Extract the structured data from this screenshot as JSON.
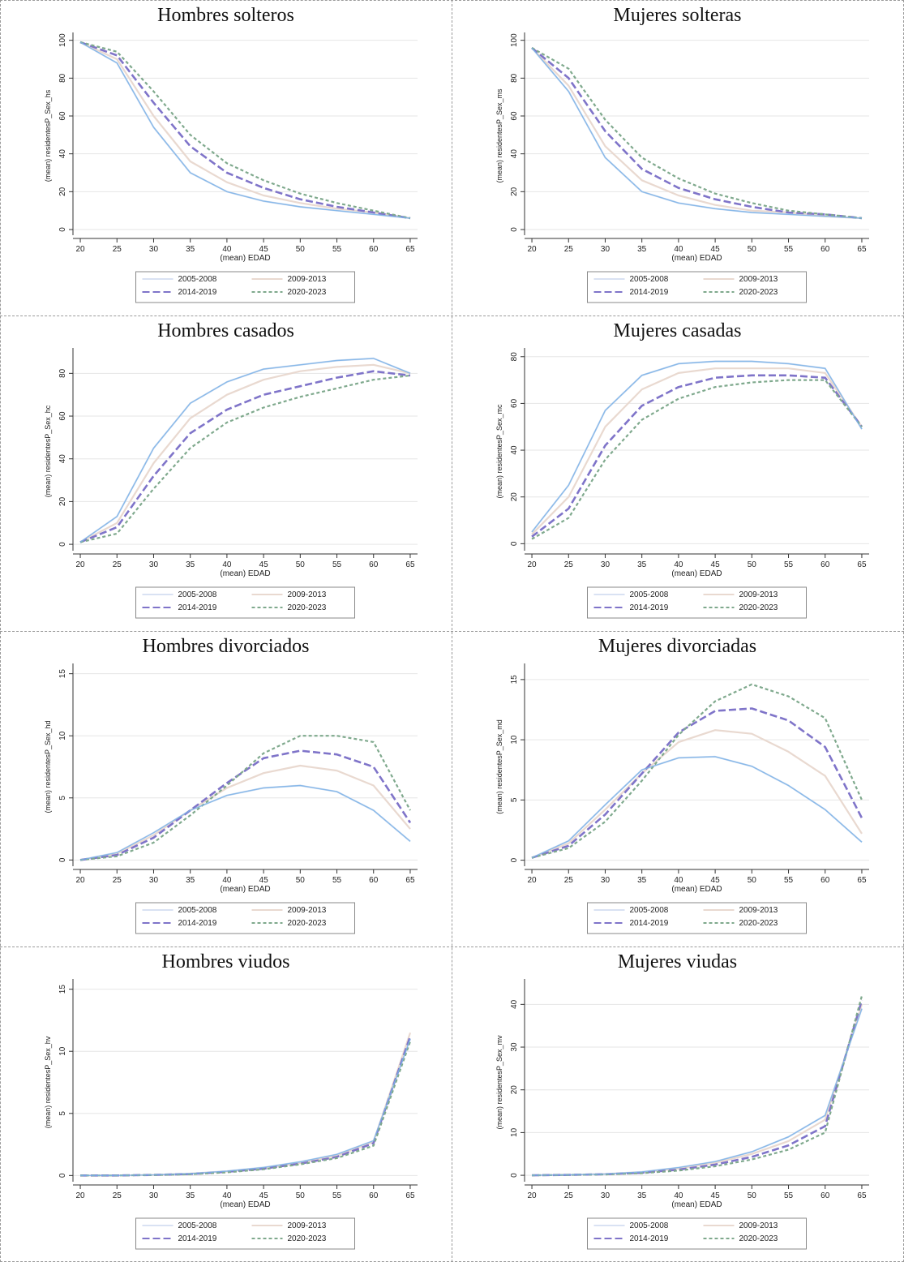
{
  "legend_labels": [
    "2005-2008",
    "2009-2013",
    "2014-2019",
    "2020-2023"
  ],
  "colors": {
    "p1": "#d9e2f3",
    "p2": "#e9d9d0",
    "p3": "#7f74c9",
    "p4": "#7fa98d",
    "light_blue": "#79b2e6",
    "grid": "#e6e6e6"
  },
  "chart_data": [
    {
      "type": "line",
      "title": "Hombres solteros",
      "xlabel": "(mean) EDAD",
      "ylabel": "(mean) residentesP_Sex_hs",
      "x": [
        20,
        25,
        30,
        35,
        40,
        45,
        50,
        55,
        60,
        65
      ],
      "xticks": [
        20,
        25,
        30,
        35,
        40,
        45,
        50,
        55,
        60,
        65
      ],
      "ylim": [
        -3,
        102
      ],
      "yticks": [
        0,
        20,
        40,
        60,
        80,
        100
      ],
      "legend": "bottom",
      "series": [
        {
          "values": [
            99,
            88,
            54,
            30,
            20,
            15,
            12,
            10,
            8,
            6
          ]
        },
        {
          "values": [
            99,
            90,
            60,
            36,
            25,
            18,
            14,
            11,
            9,
            6
          ]
        },
        {
          "values": [
            99,
            92,
            67,
            44,
            30,
            22,
            16,
            12,
            9,
            6
          ]
        },
        {
          "values": [
            99,
            94,
            73,
            50,
            35,
            26,
            19,
            14,
            10,
            6
          ]
        }
      ]
    },
    {
      "type": "line",
      "title": "Mujeres solteras",
      "xlabel": "(mean) EDAD",
      "ylabel": "(mean) residentesP_Sex_ms",
      "x": [
        20,
        25,
        30,
        35,
        40,
        45,
        50,
        55,
        60,
        65
      ],
      "xticks": [
        20,
        25,
        30,
        35,
        40,
        45,
        50,
        55,
        60,
        65
      ],
      "ylim": [
        -3,
        102
      ],
      "yticks": [
        0,
        20,
        40,
        60,
        80,
        100
      ],
      "legend": "bottom",
      "series": [
        {
          "values": [
            96,
            73,
            38,
            20,
            14,
            11,
            9,
            8,
            7,
            6
          ]
        },
        {
          "values": [
            96,
            76,
            44,
            26,
            18,
            13,
            10,
            9,
            7,
            6
          ]
        },
        {
          "values": [
            96,
            80,
            52,
            32,
            22,
            16,
            12,
            9,
            8,
            6
          ]
        },
        {
          "values": [
            96,
            85,
            58,
            38,
            27,
            19,
            14,
            10,
            8,
            6
          ]
        }
      ]
    },
    {
      "type": "line",
      "title": "Hombres casados",
      "xlabel": "(mean) EDAD",
      "ylabel": "(mean) residentesP_Sex_hc",
      "x": [
        20,
        25,
        30,
        35,
        40,
        45,
        50,
        55,
        60,
        65
      ],
      "xticks": [
        20,
        25,
        30,
        35,
        40,
        45,
        50,
        55,
        60,
        65
      ],
      "ylim": [
        -3,
        90
      ],
      "yticks": [
        0,
        20,
        40,
        60,
        80
      ],
      "legend": "bottom",
      "series": [
        {
          "values": [
            1,
            13,
            45,
            66,
            76,
            82,
            84,
            86,
            87,
            80
          ]
        },
        {
          "values": [
            1,
            10,
            38,
            59,
            70,
            77,
            81,
            83,
            84,
            80
          ]
        },
        {
          "values": [
            1,
            8,
            32,
            52,
            63,
            70,
            74,
            78,
            81,
            79
          ]
        },
        {
          "values": [
            1,
            5,
            26,
            45,
            57,
            64,
            69,
            73,
            77,
            79
          ]
        }
      ]
    },
    {
      "type": "line",
      "title": "Mujeres casadas",
      "xlabel": "(mean) EDAD",
      "ylabel": "(mean) residentesP_Sex_mc",
      "x": [
        20,
        25,
        30,
        35,
        40,
        45,
        50,
        55,
        60,
        65
      ],
      "xticks": [
        20,
        25,
        30,
        35,
        40,
        45,
        50,
        55,
        60,
        65
      ],
      "ylim": [
        -3,
        82
      ],
      "yticks": [
        0,
        20,
        40,
        60,
        80
      ],
      "legend": "bottom",
      "series": [
        {
          "values": [
            5,
            25,
            57,
            72,
            77,
            78,
            78,
            77,
            75,
            49
          ]
        },
        {
          "values": [
            4,
            20,
            50,
            66,
            73,
            75,
            75,
            75,
            73,
            50
          ]
        },
        {
          "values": [
            3,
            15,
            42,
            59,
            67,
            71,
            72,
            72,
            71,
            50
          ]
        },
        {
          "values": [
            2,
            11,
            36,
            53,
            62,
            67,
            69,
            70,
            70,
            50
          ]
        }
      ]
    },
    {
      "type": "line",
      "title": "Hombres divorciados",
      "xlabel": "(mean) EDAD",
      "ylabel": "(mean) residentesP_Sex_hd",
      "x": [
        20,
        25,
        30,
        35,
        40,
        45,
        50,
        55,
        60,
        65
      ],
      "xticks": [
        20,
        25,
        30,
        35,
        40,
        45,
        50,
        55,
        60,
        65
      ],
      "ylim": [
        -0.5,
        15.5
      ],
      "yticks": [
        0,
        5,
        10,
        15
      ],
      "legend": "bottom",
      "series": [
        {
          "values": [
            0,
            0.6,
            2.2,
            4.0,
            5.2,
            5.8,
            6.0,
            5.5,
            4.0,
            1.5
          ]
        },
        {
          "values": [
            0,
            0.5,
            2.0,
            4.0,
            5.8,
            7.0,
            7.6,
            7.2,
            6.0,
            2.5
          ]
        },
        {
          "values": [
            0,
            0.4,
            1.8,
            4.0,
            6.2,
            8.2,
            8.8,
            8.5,
            7.5,
            3.0
          ]
        },
        {
          "values": [
            0,
            0.3,
            1.4,
            3.6,
            6.0,
            8.6,
            10.0,
            10.0,
            9.5,
            4.0
          ]
        }
      ]
    },
    {
      "type": "line",
      "title": "Mujeres divorciadas",
      "xlabel": "(mean) EDAD",
      "ylabel": "(mean) residentesP_Sex_md",
      "x": [
        20,
        25,
        30,
        35,
        40,
        45,
        50,
        55,
        60,
        65
      ],
      "xticks": [
        20,
        25,
        30,
        35,
        40,
        45,
        50,
        55,
        60,
        65
      ],
      "ylim": [
        -0.5,
        16
      ],
      "yticks": [
        0,
        5,
        10,
        15
      ],
      "legend": "bottom",
      "series": [
        {
          "values": [
            0.2,
            1.6,
            4.6,
            7.5,
            8.5,
            8.6,
            7.8,
            6.2,
            4.2,
            1.5
          ]
        },
        {
          "values": [
            0.2,
            1.4,
            4.2,
            7.2,
            9.8,
            10.8,
            10.5,
            9.0,
            7.0,
            2.2
          ]
        },
        {
          "values": [
            0.2,
            1.2,
            3.8,
            7.2,
            10.6,
            12.4,
            12.6,
            11.6,
            9.4,
            3.5
          ]
        },
        {
          "values": [
            0.2,
            1.0,
            3.2,
            6.6,
            10.4,
            13.2,
            14.6,
            13.6,
            11.8,
            5.0
          ]
        }
      ]
    },
    {
      "type": "line",
      "title": "Hombres viudos",
      "xlabel": "(mean) EDAD",
      "ylabel": "(mean) residentesP_Sex_hv",
      "x": [
        20,
        25,
        30,
        35,
        40,
        45,
        50,
        55,
        60,
        65
      ],
      "xticks": [
        20,
        25,
        30,
        35,
        40,
        45,
        50,
        55,
        60,
        65
      ],
      "ylim": [
        -0.5,
        15.5
      ],
      "yticks": [
        0,
        5,
        10,
        15
      ],
      "legend": "bottom",
      "series": [
        {
          "values": [
            0,
            0,
            0.05,
            0.15,
            0.35,
            0.65,
            1.1,
            1.7,
            2.8,
            11.0
          ]
        },
        {
          "values": [
            0,
            0,
            0.05,
            0.15,
            0.32,
            0.6,
            1.0,
            1.6,
            2.7,
            11.5
          ]
        },
        {
          "values": [
            0,
            0,
            0.05,
            0.12,
            0.3,
            0.55,
            0.95,
            1.5,
            2.6,
            11.2
          ]
        },
        {
          "values": [
            0,
            0,
            0.04,
            0.1,
            0.25,
            0.5,
            0.9,
            1.4,
            2.4,
            10.8
          ]
        }
      ]
    },
    {
      "type": "line",
      "title": "Mujeres viudas",
      "xlabel": "(mean) EDAD",
      "ylabel": "(mean) residentesP_Sex_mv",
      "x": [
        20,
        25,
        30,
        35,
        40,
        45,
        50,
        55,
        60,
        65
      ],
      "xticks": [
        20,
        25,
        30,
        35,
        40,
        45,
        50,
        55,
        60,
        65
      ],
      "ylim": [
        -1.5,
        45
      ],
      "yticks": [
        0,
        10,
        20,
        30,
        40
      ],
      "legend": "bottom",
      "series": [
        {
          "values": [
            0,
            0.1,
            0.3,
            0.8,
            1.8,
            3.2,
            5.5,
            9.0,
            14.0,
            39.0
          ]
        },
        {
          "values": [
            0,
            0.1,
            0.3,
            0.7,
            1.6,
            2.9,
            5.0,
            8.0,
            13.0,
            40.0
          ]
        },
        {
          "values": [
            0,
            0.1,
            0.25,
            0.6,
            1.3,
            2.5,
            4.3,
            7.0,
            11.5,
            41.0
          ]
        },
        {
          "values": [
            0,
            0.1,
            0.2,
            0.5,
            1.1,
            2.1,
            3.7,
            6.0,
            10.0,
            42.0
          ]
        }
      ]
    }
  ]
}
